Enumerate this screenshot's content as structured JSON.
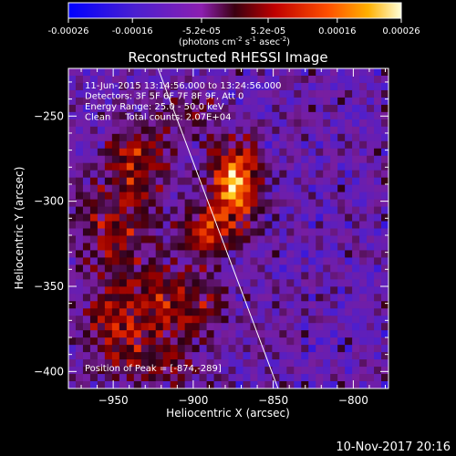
{
  "colorbar": {
    "tick_labels": [
      "-0.00026",
      "-0.00016",
      "-5.2e-05",
      "5.2e-05",
      "0.00016",
      "0.00026"
    ],
    "units_main": "(photons cm",
    "units_sup1": "-2",
    "units_mid": " s",
    "units_sup2": "-1",
    "units_mid2": " asec",
    "units_sup3": "-2",
    "units_end": ")",
    "range": [
      -0.00026,
      0.00026
    ]
  },
  "footer": {
    "timestamp": "10-Nov-2017 20:16"
  },
  "chart_data": {
    "type": "heatmap",
    "title": "Reconstructed RHESSI Image",
    "xlabel": "Heliocentric X (arcsec)",
    "ylabel": "Heliocentric Y (arcsec)",
    "xlim": [
      -978,
      -778
    ],
    "ylim": [
      -410,
      -222
    ],
    "x_ticks": [
      -950,
      -900,
      -850,
      -800
    ],
    "y_ticks": [
      -250,
      -300,
      -350,
      -400
    ],
    "x_tick_labels": [
      "−950",
      "−900",
      "−850",
      "−800"
    ],
    "y_tick_labels": [
      "−250",
      "−300",
      "−350",
      "−400"
    ],
    "annotations": [
      "11-Jun-2015 13:14:56.000 to 13:24:56.000",
      "Detectors: 3F 5F 6F 7F 8F 9F, Att 0",
      "Energy Range: 25.0 - 50.0 keV",
      "Clean     Total counts: 2.07E+04"
    ],
    "peak_label": "Position of Peak = [-874,-289]",
    "peak": [
      -874,
      -289
    ],
    "limb_line": [
      [
        -922,
        -222
      ],
      [
        -847,
        -410
      ]
    ],
    "sources": [
      {
        "x": -874,
        "y": -289,
        "amp": 1.0,
        "sx": 10,
        "sy": 16
      },
      {
        "x": -893,
        "y": -318,
        "amp": 0.55,
        "sx": 12,
        "sy": 10
      },
      {
        "x": -935,
        "y": -275,
        "amp": 0.5,
        "sx": 14,
        "sy": 16
      },
      {
        "x": -948,
        "y": -320,
        "amp": 0.45,
        "sx": 16,
        "sy": 20
      },
      {
        "x": -910,
        "y": -360,
        "amp": 0.5,
        "sx": 20,
        "sy": 14
      },
      {
        "x": -950,
        "y": -375,
        "amp": 0.45,
        "sx": 14,
        "sy": 16
      },
      {
        "x": -900,
        "y": -250,
        "amp": 0.35,
        "sx": 10,
        "sy": 10
      },
      {
        "x": -920,
        "y": -395,
        "amp": 0.35,
        "sx": 18,
        "sy": 10
      }
    ]
  }
}
